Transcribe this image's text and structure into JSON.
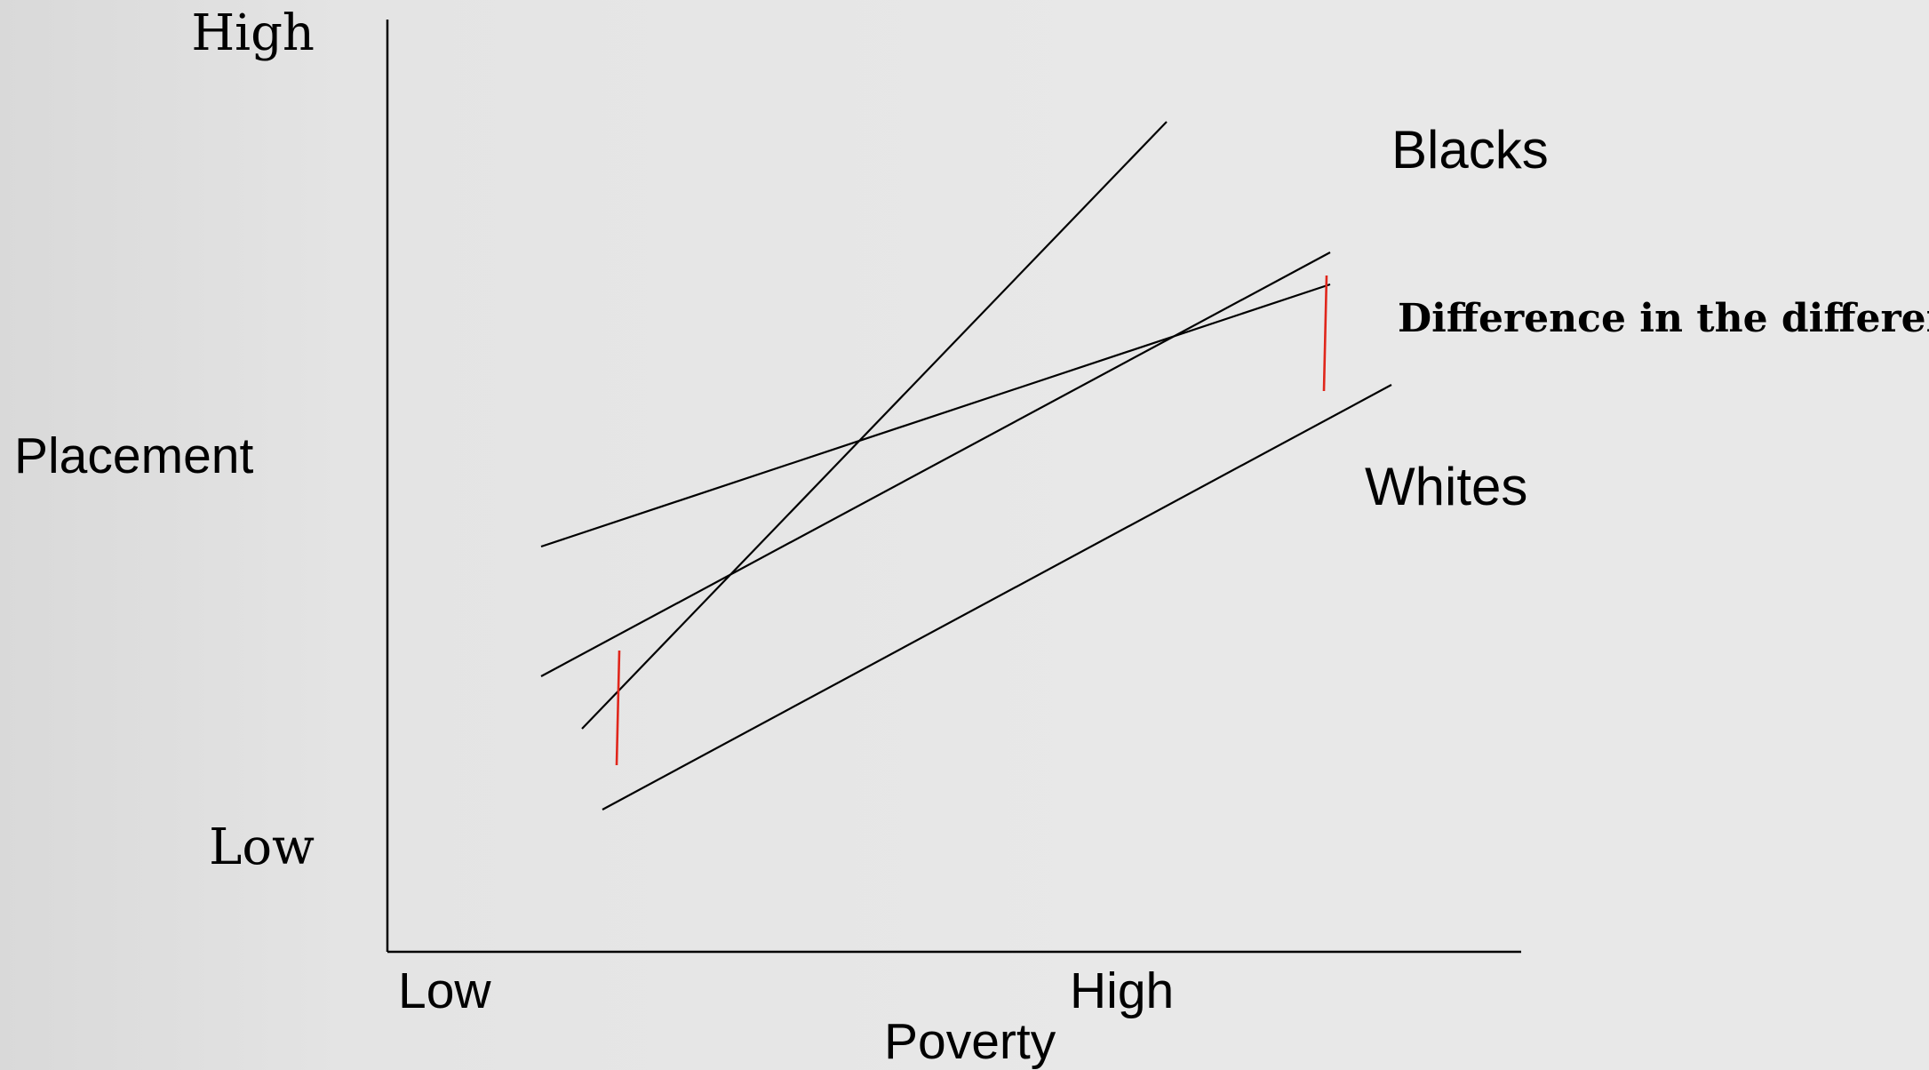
{
  "diagram": {
    "y_axis": {
      "title": "Placement",
      "high_label": "High",
      "low_label": "Low"
    },
    "x_axis": {
      "title": "Poverty",
      "low_label": "Low",
      "high_label": "High"
    },
    "annotations": {
      "blacks": "Blacks",
      "whites": "Whites",
      "difference": "Difference in the difference"
    },
    "colors": {
      "lines": "#000000",
      "difference_markers": "#e0261b",
      "background": "#e6e6e6"
    }
  }
}
